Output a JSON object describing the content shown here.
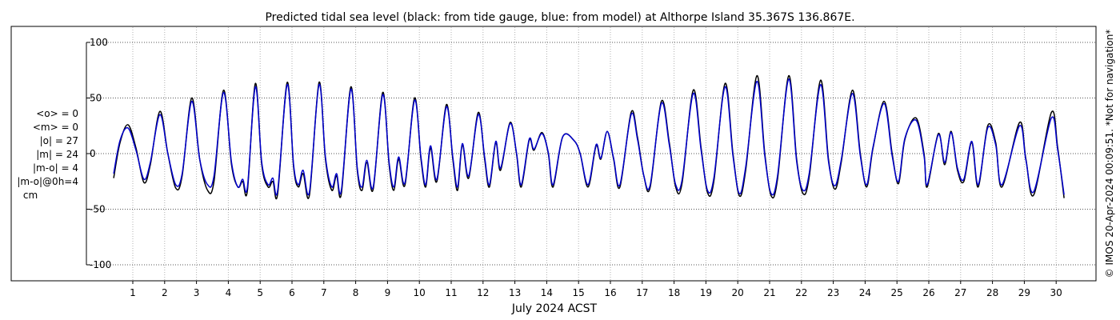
{
  "chart_data": {
    "type": "line",
    "title": "Predicted tidal sea level (black: from tide gauge, blue: from model) at Althorpe Island 35.367S 136.867E.",
    "xlabel": "July 2024 ACST",
    "ylabel": "",
    "xlim": [
      0.35,
      31.1
    ],
    "ylim": [
      -105,
      105
    ],
    "x_ticks": [
      "1",
      "2",
      "3",
      "4",
      "5",
      "6",
      "7",
      "8",
      "9",
      "10",
      "11",
      "12",
      "13",
      "14",
      "15",
      "16",
      "17",
      "18",
      "19",
      "20",
      "21",
      "22",
      "23",
      "24",
      "25",
      "26",
      "27",
      "28",
      "29",
      "30"
    ],
    "y_ticks": [
      {
        "value": 100,
        "label": "100"
      },
      {
        "value": 50,
        "label": "50"
      },
      {
        "value": 0,
        "label": "0"
      },
      {
        "value": -50,
        "label": "-50"
      },
      {
        "value": -100,
        "label": "-100"
      }
    ],
    "grid": true,
    "series": [
      {
        "name": "tide gauge",
        "color": "#000000",
        "points": [
          [
            0.4,
            -22
          ],
          [
            0.6,
            10
          ],
          [
            0.85,
            26
          ],
          [
            1.1,
            5
          ],
          [
            1.35,
            -26
          ],
          [
            1.55,
            -10
          ],
          [
            1.85,
            38
          ],
          [
            2.1,
            0
          ],
          [
            2.35,
            -31
          ],
          [
            2.55,
            -20
          ],
          [
            2.85,
            50
          ],
          [
            3.1,
            -5
          ],
          [
            3.35,
            -33
          ],
          [
            3.55,
            -25
          ],
          [
            3.85,
            57
          ],
          [
            4.1,
            -10
          ],
          [
            4.3,
            -30
          ],
          [
            4.45,
            -25
          ],
          [
            4.6,
            -33
          ],
          [
            4.85,
            63
          ],
          [
            5.05,
            -10
          ],
          [
            5.25,
            -30
          ],
          [
            5.4,
            -25
          ],
          [
            5.55,
            -36
          ],
          [
            5.85,
            64
          ],
          [
            6.05,
            -12
          ],
          [
            6.2,
            -30
          ],
          [
            6.35,
            -18
          ],
          [
            6.55,
            -37
          ],
          [
            6.85,
            64
          ],
          [
            7.05,
            -5
          ],
          [
            7.25,
            -33
          ],
          [
            7.4,
            -20
          ],
          [
            7.55,
            -36
          ],
          [
            7.85,
            60
          ],
          [
            8.05,
            -15
          ],
          [
            8.2,
            -33
          ],
          [
            8.35,
            -8
          ],
          [
            8.55,
            -32
          ],
          [
            8.85,
            55
          ],
          [
            9.05,
            -10
          ],
          [
            9.2,
            -33
          ],
          [
            9.35,
            -5
          ],
          [
            9.55,
            -28
          ],
          [
            9.85,
            50
          ],
          [
            10.05,
            -5
          ],
          [
            10.2,
            -30
          ],
          [
            10.35,
            5
          ],
          [
            10.55,
            -25
          ],
          [
            10.85,
            44
          ],
          [
            11.05,
            -5
          ],
          [
            11.2,
            -33
          ],
          [
            11.35,
            8
          ],
          [
            11.55,
            -22
          ],
          [
            11.85,
            37
          ],
          [
            12.05,
            -5
          ],
          [
            12.2,
            -30
          ],
          [
            12.4,
            10
          ],
          [
            12.55,
            -15
          ],
          [
            12.85,
            28
          ],
          [
            13.05,
            0
          ],
          [
            13.2,
            -30
          ],
          [
            13.45,
            12
          ],
          [
            13.6,
            3
          ],
          [
            13.85,
            19
          ],
          [
            14.05,
            0
          ],
          [
            14.2,
            -30
          ],
          [
            14.5,
            15
          ],
          [
            14.85,
            12
          ],
          [
            15.05,
            0
          ],
          [
            15.3,
            -30
          ],
          [
            15.55,
            7
          ],
          [
            15.7,
            -5
          ],
          [
            15.9,
            20
          ],
          [
            16.1,
            -5
          ],
          [
            16.3,
            -30
          ],
          [
            16.65,
            37
          ],
          [
            16.85,
            15
          ],
          [
            17.05,
            -20
          ],
          [
            17.25,
            -30
          ],
          [
            17.6,
            47
          ],
          [
            17.85,
            10
          ],
          [
            18.05,
            -30
          ],
          [
            18.25,
            -27
          ],
          [
            18.6,
            57
          ],
          [
            18.85,
            5
          ],
          [
            19.05,
            -35
          ],
          [
            19.25,
            -25
          ],
          [
            19.6,
            63
          ],
          [
            19.85,
            0
          ],
          [
            20.05,
            -38
          ],
          [
            20.25,
            -15
          ],
          [
            20.6,
            70
          ],
          [
            20.85,
            0
          ],
          [
            21.05,
            -38
          ],
          [
            21.25,
            -23
          ],
          [
            21.6,
            70
          ],
          [
            21.85,
            -5
          ],
          [
            22.05,
            -36
          ],
          [
            22.25,
            -20
          ],
          [
            22.6,
            66
          ],
          [
            22.85,
            -5
          ],
          [
            23.05,
            -32
          ],
          [
            23.25,
            -8
          ],
          [
            23.6,
            57
          ],
          [
            23.85,
            0
          ],
          [
            24.05,
            -30
          ],
          [
            24.25,
            5
          ],
          [
            24.6,
            47
          ],
          [
            24.85,
            0
          ],
          [
            25.05,
            -27
          ],
          [
            25.25,
            13
          ],
          [
            25.6,
            32
          ],
          [
            25.85,
            0
          ],
          [
            25.95,
            -30
          ],
          [
            26.3,
            18
          ],
          [
            26.5,
            -10
          ],
          [
            26.7,
            20
          ],
          [
            26.9,
            -15
          ],
          [
            27.1,
            -25
          ],
          [
            27.35,
            10
          ],
          [
            27.55,
            -30
          ],
          [
            27.85,
            25
          ],
          [
            28.1,
            10
          ],
          [
            28.3,
            -30
          ],
          [
            28.85,
            28
          ],
          [
            29.05,
            -5
          ],
          [
            29.3,
            -37
          ],
          [
            29.85,
            37
          ],
          [
            30.05,
            5
          ],
          [
            30.25,
            -40
          ]
        ]
      },
      {
        "name": "model",
        "color": "#0000cc",
        "points": [
          [
            0.4,
            -18
          ],
          [
            0.6,
            12
          ],
          [
            0.85,
            23
          ],
          [
            1.1,
            3
          ],
          [
            1.35,
            -23
          ],
          [
            1.55,
            -8
          ],
          [
            1.85,
            35
          ],
          [
            2.1,
            0
          ],
          [
            2.35,
            -28
          ],
          [
            2.55,
            -18
          ],
          [
            2.85,
            47
          ],
          [
            3.1,
            -5
          ],
          [
            3.35,
            -28
          ],
          [
            3.55,
            -20
          ],
          [
            3.85,
            55
          ],
          [
            4.1,
            -8
          ],
          [
            4.3,
            -30
          ],
          [
            4.45,
            -23
          ],
          [
            4.6,
            -30
          ],
          [
            4.85,
            60
          ],
          [
            5.05,
            -8
          ],
          [
            5.25,
            -28
          ],
          [
            5.4,
            -22
          ],
          [
            5.55,
            -33
          ],
          [
            5.85,
            62
          ],
          [
            6.05,
            -10
          ],
          [
            6.2,
            -28
          ],
          [
            6.35,
            -15
          ],
          [
            6.55,
            -34
          ],
          [
            6.85,
            62
          ],
          [
            7.05,
            -3
          ],
          [
            7.25,
            -30
          ],
          [
            7.4,
            -18
          ],
          [
            7.55,
            -33
          ],
          [
            7.85,
            58
          ],
          [
            8.05,
            -13
          ],
          [
            8.2,
            -30
          ],
          [
            8.35,
            -6
          ],
          [
            8.55,
            -30
          ],
          [
            8.85,
            53
          ],
          [
            9.05,
            -8
          ],
          [
            9.2,
            -30
          ],
          [
            9.35,
            -3
          ],
          [
            9.55,
            -26
          ],
          [
            9.85,
            48
          ],
          [
            10.05,
            -3
          ],
          [
            10.2,
            -28
          ],
          [
            10.35,
            7
          ],
          [
            10.55,
            -23
          ],
          [
            10.85,
            42
          ],
          [
            11.05,
            -3
          ],
          [
            11.2,
            -30
          ],
          [
            11.35,
            9
          ],
          [
            11.55,
            -20
          ],
          [
            11.85,
            35
          ],
          [
            12.05,
            -3
          ],
          [
            12.2,
            -28
          ],
          [
            12.4,
            11
          ],
          [
            12.55,
            -13
          ],
          [
            12.85,
            27
          ],
          [
            13.05,
            1
          ],
          [
            13.2,
            -28
          ],
          [
            13.45,
            13
          ],
          [
            13.6,
            4
          ],
          [
            13.85,
            18
          ],
          [
            14.05,
            1
          ],
          [
            14.2,
            -28
          ],
          [
            14.5,
            15
          ],
          [
            14.85,
            12
          ],
          [
            15.05,
            0
          ],
          [
            15.3,
            -28
          ],
          [
            15.55,
            8
          ],
          [
            15.7,
            -4
          ],
          [
            15.9,
            20
          ],
          [
            16.1,
            -4
          ],
          [
            16.3,
            -28
          ],
          [
            16.65,
            35
          ],
          [
            16.85,
            13
          ],
          [
            17.05,
            -20
          ],
          [
            17.25,
            -28
          ],
          [
            17.6,
            45
          ],
          [
            17.85,
            8
          ],
          [
            18.05,
            -28
          ],
          [
            18.25,
            -24
          ],
          [
            18.6,
            54
          ],
          [
            18.85,
            3
          ],
          [
            19.05,
            -33
          ],
          [
            19.25,
            -22
          ],
          [
            19.6,
            60
          ],
          [
            19.85,
            -2
          ],
          [
            20.05,
            -36
          ],
          [
            20.25,
            -12
          ],
          [
            20.6,
            65
          ],
          [
            20.85,
            -2
          ],
          [
            21.05,
            -36
          ],
          [
            21.25,
            -20
          ],
          [
            21.6,
            67
          ],
          [
            21.85,
            -7
          ],
          [
            22.05,
            -33
          ],
          [
            22.25,
            -17
          ],
          [
            22.6,
            62
          ],
          [
            22.85,
            -7
          ],
          [
            23.05,
            -29
          ],
          [
            23.25,
            -6
          ],
          [
            23.6,
            54
          ],
          [
            23.85,
            -2
          ],
          [
            24.05,
            -28
          ],
          [
            24.25,
            6
          ],
          [
            24.6,
            45
          ],
          [
            24.85,
            -2
          ],
          [
            25.05,
            -25
          ],
          [
            25.25,
            14
          ],
          [
            25.6,
            30
          ],
          [
            25.85,
            -2
          ],
          [
            25.95,
            -28
          ],
          [
            26.3,
            17
          ],
          [
            26.5,
            -8
          ],
          [
            26.7,
            19
          ],
          [
            26.9,
            -13
          ],
          [
            27.1,
            -23
          ],
          [
            27.35,
            11
          ],
          [
            27.55,
            -28
          ],
          [
            27.85,
            23
          ],
          [
            28.1,
            8
          ],
          [
            28.3,
            -28
          ],
          [
            28.85,
            25
          ],
          [
            29.05,
            -6
          ],
          [
            29.3,
            -34
          ],
          [
            29.85,
            32
          ],
          [
            30.05,
            3
          ],
          [
            30.25,
            -37
          ]
        ]
      }
    ]
  },
  "stats": [
    "<o> = 0",
    "<m> = 0",
    "|o| = 27",
    "|m| = 24",
    "|m-o| = 4",
    "|m-o|@0h=4",
    "cm"
  ],
  "watermark": "© IMOS 20-Apr-2024 00:09:51. *Not for navigation*"
}
